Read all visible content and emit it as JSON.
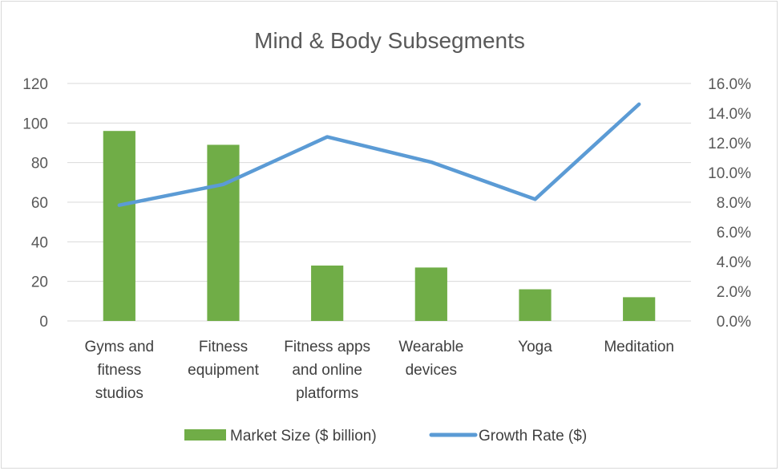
{
  "chart_data": {
    "type": "bar",
    "title": "Mind & Body Subsegments",
    "categories": [
      [
        "Gyms and",
        "fitness",
        "studios"
      ],
      [
        "Fitness",
        "equipment"
      ],
      [
        "Fitness apps",
        "and online",
        "platforms"
      ],
      [
        "Wearable",
        "devices"
      ],
      [
        "Yoga"
      ],
      [
        "Meditation"
      ]
    ],
    "series": [
      {
        "name": "Market Size ($ billion)",
        "type": "bar",
        "axis": "left",
        "color": "#70ad47",
        "values": [
          96,
          89,
          28,
          27,
          16,
          12
        ]
      },
      {
        "name": "Growth Rate ($)",
        "type": "line",
        "axis": "right",
        "color": "#5b9bd5",
        "values": [
          7.8,
          9.2,
          12.4,
          10.7,
          8.2,
          14.6
        ]
      }
    ],
    "y_left": {
      "min": 0,
      "max": 120,
      "ticks": [
        "0",
        "20",
        "40",
        "60",
        "80",
        "100",
        "120"
      ]
    },
    "y_right": {
      "min": 0,
      "max": 16,
      "ticks": [
        "0.0%",
        "2.0%",
        "4.0%",
        "6.0%",
        "8.0%",
        "10.0%",
        "12.0%",
        "14.0%",
        "16.0%"
      ]
    },
    "grid": true,
    "legend_position": "bottom",
    "colors": {
      "gridline": "#d9d9d9",
      "text": "#595959"
    }
  }
}
